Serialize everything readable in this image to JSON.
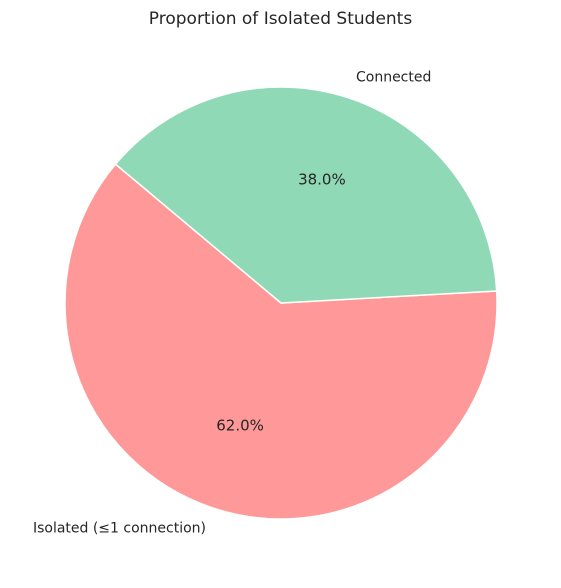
{
  "chart_data": {
    "type": "pie",
    "title": "Proportion of Isolated Students",
    "labels": [
      "Isolated (≤1 connection)",
      "Connected"
    ],
    "values": [
      62.0,
      38.0
    ],
    "value_labels": [
      "62.0%",
      "38.0%"
    ],
    "colors": [
      "#ff9999",
      "#8fd9b6"
    ],
    "start_angle_degrees": 140,
    "direction": "counterclockwise",
    "edge_color": "#ffffff",
    "legend": "none"
  }
}
